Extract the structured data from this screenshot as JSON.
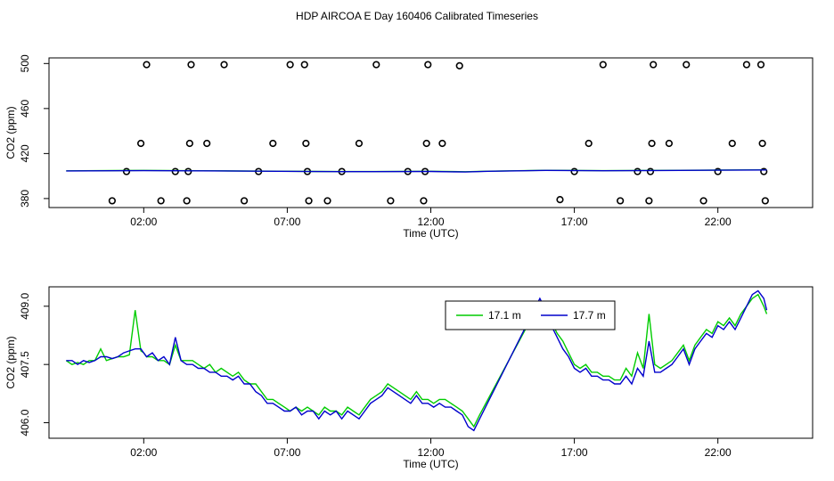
{
  "title": "HDP AIRCOA E  Day 160406  Calibrated Timeseries",
  "chart_data": [
    {
      "type": "scatter",
      "xlabel": "Time (UTC)",
      "ylabel": "CO2 (ppm)",
      "xlim": [
        -1.3,
        25.3
      ],
      "ylim": [
        372,
        505
      ],
      "x_ticks": [
        2,
        7,
        12,
        17,
        22
      ],
      "x_tick_labels": [
        "02:00",
        "07:00",
        "12:00",
        "17:00",
        "22:00"
      ],
      "y_ticks": [
        380,
        420,
        460,
        500
      ],
      "y_tick_labels": [
        "380",
        "420",
        "460",
        "500"
      ],
      "grid": false,
      "series": [
        {
          "kind": "points",
          "color": "#000000",
          "x": [
            0.9,
            1.4,
            1.9,
            2.1,
            2.6,
            3.1,
            3.5,
            3.55,
            3.6,
            3.65,
            4.2,
            4.8,
            5.5,
            6.0,
            6.5,
            7.1,
            7.6,
            7.65,
            7.7,
            7.75,
            8.4,
            8.9,
            9.5,
            10.1,
            10.6,
            11.2,
            11.75,
            11.8,
            11.85,
            11.9,
            12.4,
            13.0,
            16.5,
            17.0,
            17.5,
            18.0,
            18.6,
            19.2,
            19.6,
            19.65,
            19.7,
            19.75,
            20.3,
            20.9,
            21.5,
            22.0,
            22.5,
            23.0,
            23.5,
            23.55,
            23.6,
            23.65
          ],
          "y": [
            378,
            404,
            429,
            499,
            378,
            404,
            378,
            404,
            429,
            499,
            429,
            499,
            378,
            404,
            429,
            499,
            499,
            429,
            404,
            378,
            378,
            404,
            429,
            499,
            378,
            404,
            378,
            404,
            429,
            499,
            429,
            498,
            379,
            404,
            429,
            499,
            378,
            404,
            378,
            404,
            429,
            499,
            429,
            499,
            378,
            404,
            429,
            499,
            499,
            429,
            404,
            378
          ]
        },
        {
          "kind": "line",
          "color": "#00cc00",
          "x": [
            -0.7,
            2,
            4,
            6,
            8,
            10,
            12,
            13.2,
            14,
            16,
            18,
            20,
            22,
            23.7
          ],
          "y": [
            404.6,
            405.0,
            404.7,
            404.4,
            404.1,
            404.0,
            404.2,
            403.8,
            404.3,
            405.1,
            404.8,
            405.0,
            405.3,
            405.5
          ]
        },
        {
          "kind": "line",
          "color": "#0000cc",
          "x": [
            -0.7,
            2,
            4,
            6,
            8,
            10,
            12,
            13.2,
            14,
            16,
            18,
            20,
            22,
            23.7
          ],
          "y": [
            404.5,
            404.8,
            404.6,
            404.3,
            404.0,
            403.9,
            404.1,
            403.6,
            404.2,
            405.0,
            404.7,
            404.9,
            405.2,
            405.4
          ]
        }
      ]
    },
    {
      "type": "line",
      "xlabel": "Time (UTC)",
      "ylabel": "CO2 (ppm)",
      "xlim": [
        -1.3,
        25.3
      ],
      "ylim": [
        405.6,
        409.5
      ],
      "x_ticks": [
        2,
        7,
        12,
        17,
        22
      ],
      "x_tick_labels": [
        "02:00",
        "07:00",
        "12:00",
        "17:00",
        "22:00"
      ],
      "y_ticks": [
        406.0,
        407.5,
        409.0
      ],
      "y_tick_labels": [
        "406.0",
        "407.5",
        "409.0"
      ],
      "grid": false,
      "legend_position": "top-center",
      "series": [
        {
          "name": "17.1 m",
          "color": "#00cc00",
          "x": [
            -0.7,
            -0.5,
            -0.3,
            -0.1,
            0.1,
            0.3,
            0.5,
            0.7,
            0.9,
            1.1,
            1.3,
            1.5,
            1.7,
            1.9,
            2.0,
            2.1,
            2.3,
            2.5,
            2.7,
            2.9,
            3.1,
            3.3,
            3.5,
            3.7,
            3.9,
            4.1,
            4.3,
            4.5,
            4.7,
            4.9,
            5.1,
            5.3,
            5.5,
            5.7,
            5.9,
            6.1,
            6.3,
            6.5,
            6.7,
            6.9,
            7.1,
            7.3,
            7.5,
            7.7,
            7.9,
            8.1,
            8.3,
            8.5,
            8.7,
            8.9,
            9.1,
            9.3,
            9.5,
            9.7,
            9.9,
            10.1,
            10.3,
            10.5,
            10.7,
            10.9,
            11.1,
            11.3,
            11.5,
            11.7,
            11.9,
            12.1,
            12.3,
            12.5,
            12.7,
            12.9,
            13.1,
            13.3,
            13.5,
            13.7,
            15.8,
            16.0,
            16.2,
            16.4,
            16.6,
            16.8,
            17.0,
            17.2,
            17.4,
            17.6,
            17.8,
            18.0,
            18.2,
            18.4,
            18.6,
            18.8,
            19.0,
            19.2,
            19.4,
            19.6,
            19.8,
            20.0,
            20.2,
            20.4,
            20.6,
            20.8,
            21.0,
            21.2,
            21.4,
            21.6,
            21.8,
            22.0,
            22.2,
            22.4,
            22.6,
            22.8,
            23.0,
            23.2,
            23.4,
            23.6,
            23.7
          ],
          "y": [
            407.6,
            407.5,
            407.55,
            407.5,
            407.6,
            407.6,
            407.9,
            407.6,
            407.65,
            407.7,
            407.7,
            407.75,
            408.9,
            407.85,
            407.8,
            407.7,
            407.7,
            407.6,
            407.6,
            407.5,
            408.0,
            407.6,
            407.6,
            407.6,
            407.5,
            407.4,
            407.5,
            407.3,
            407.4,
            407.3,
            407.2,
            407.3,
            407.1,
            407.0,
            407.0,
            406.8,
            406.6,
            406.6,
            406.5,
            406.4,
            406.3,
            406.4,
            406.3,
            406.4,
            406.3,
            406.2,
            406.4,
            406.3,
            406.3,
            406.2,
            406.4,
            406.3,
            406.2,
            406.4,
            406.6,
            406.7,
            406.8,
            407.0,
            406.9,
            406.8,
            406.7,
            406.6,
            406.8,
            406.6,
            406.6,
            406.5,
            406.6,
            406.6,
            406.5,
            406.4,
            406.3,
            406.1,
            405.9,
            406.2,
            409.1,
            408.9,
            408.6,
            408.3,
            408.1,
            407.8,
            407.5,
            407.4,
            407.5,
            407.3,
            407.3,
            407.2,
            407.2,
            407.1,
            407.1,
            407.4,
            407.2,
            407.8,
            407.4,
            408.8,
            407.5,
            407.4,
            407.5,
            407.6,
            407.8,
            408.0,
            407.6,
            408.0,
            408.2,
            408.4,
            408.3,
            408.6,
            408.5,
            408.7,
            408.5,
            408.8,
            409.0,
            409.2,
            409.3,
            409.0,
            408.8
          ]
        },
        {
          "name": "17.7 m",
          "color": "#0000cc",
          "x": [
            -0.7,
            -0.5,
            -0.3,
            -0.1,
            0.1,
            0.3,
            0.5,
            0.7,
            0.9,
            1.1,
            1.3,
            1.5,
            1.7,
            1.9,
            2.0,
            2.1,
            2.3,
            2.5,
            2.7,
            2.9,
            3.1,
            3.3,
            3.5,
            3.7,
            3.9,
            4.1,
            4.3,
            4.5,
            4.7,
            4.9,
            5.1,
            5.3,
            5.5,
            5.7,
            5.9,
            6.1,
            6.3,
            6.5,
            6.7,
            6.9,
            7.1,
            7.3,
            7.5,
            7.7,
            7.9,
            8.1,
            8.3,
            8.5,
            8.7,
            8.9,
            9.1,
            9.3,
            9.5,
            9.7,
            9.9,
            10.1,
            10.3,
            10.5,
            10.7,
            10.9,
            11.1,
            11.3,
            11.5,
            11.7,
            11.9,
            12.1,
            12.3,
            12.5,
            12.7,
            12.9,
            13.1,
            13.3,
            13.5,
            13.7,
            15.8,
            16.0,
            16.2,
            16.4,
            16.6,
            16.8,
            17.0,
            17.2,
            17.4,
            17.6,
            17.8,
            18.0,
            18.2,
            18.4,
            18.6,
            18.8,
            19.0,
            19.2,
            19.4,
            19.6,
            19.8,
            20.0,
            20.2,
            20.4,
            20.6,
            20.8,
            21.0,
            21.2,
            21.4,
            21.6,
            21.8,
            22.0,
            22.2,
            22.4,
            22.6,
            22.8,
            23.0,
            23.2,
            23.4,
            23.6,
            23.7
          ],
          "y": [
            407.6,
            407.6,
            407.5,
            407.6,
            407.55,
            407.6,
            407.7,
            407.7,
            407.65,
            407.7,
            407.8,
            407.85,
            407.9,
            407.9,
            407.8,
            407.7,
            407.8,
            407.6,
            407.7,
            407.5,
            408.2,
            407.6,
            407.5,
            407.5,
            407.4,
            407.4,
            407.3,
            407.3,
            407.2,
            407.2,
            407.1,
            407.2,
            407.0,
            407.0,
            406.8,
            406.7,
            406.5,
            406.5,
            406.4,
            406.3,
            406.3,
            406.4,
            406.2,
            406.3,
            406.3,
            406.1,
            406.3,
            406.2,
            406.3,
            406.1,
            406.3,
            406.2,
            406.1,
            406.3,
            406.5,
            406.6,
            406.7,
            406.9,
            406.8,
            406.7,
            406.6,
            406.5,
            406.7,
            406.5,
            406.5,
            406.4,
            406.5,
            406.4,
            406.4,
            406.3,
            406.2,
            405.9,
            405.8,
            406.1,
            409.2,
            408.9,
            408.5,
            408.2,
            407.9,
            407.7,
            407.4,
            407.3,
            407.4,
            407.2,
            407.2,
            407.1,
            407.1,
            407.0,
            407.0,
            407.2,
            407.0,
            407.4,
            407.2,
            408.1,
            407.3,
            407.3,
            407.4,
            407.5,
            407.7,
            407.9,
            407.5,
            407.9,
            408.1,
            408.3,
            408.2,
            408.5,
            408.4,
            408.6,
            408.4,
            408.7,
            409.0,
            409.3,
            409.4,
            409.2,
            408.9
          ]
        }
      ]
    }
  ]
}
